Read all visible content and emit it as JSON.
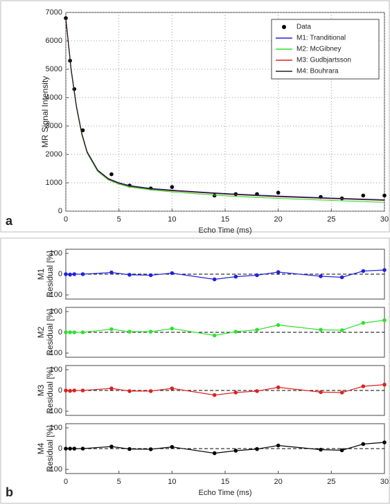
{
  "chart_data": [
    {
      "type": "line",
      "xlabel": "Echo Time (ms)",
      "ylabel": "MR Signal Intensity",
      "panel_label": "a",
      "xlim": [
        0,
        30
      ],
      "xticks": [
        0,
        5,
        10,
        15,
        20,
        25,
        30
      ],
      "ylim": [
        0,
        7000
      ],
      "yticks": [
        0,
        1000,
        2000,
        3000,
        4000,
        5000,
        6000,
        7000
      ],
      "grid": true,
      "legend": "upper right",
      "series": [
        {
          "name": "Data",
          "color": "#000000",
          "marker": true,
          "line": false,
          "x": [
            0,
            0.4,
            0.8,
            1.6,
            4.3,
            6,
            8,
            10,
            14,
            16,
            18,
            20,
            24,
            26,
            28,
            30
          ],
          "values": [
            6800,
            5300,
            4300,
            2850,
            1300,
            900,
            800,
            850,
            550,
            600,
            600,
            650,
            500,
            450,
            550,
            550
          ]
        },
        {
          "name": "M1: Tranditional",
          "color": "#2020e0",
          "x": [
            0,
            0.5,
            1,
            1.5,
            2,
            3,
            4,
            5,
            6,
            8,
            10,
            12,
            15,
            20,
            25,
            30
          ],
          "values": [
            6800,
            5000,
            3700,
            2750,
            2100,
            1450,
            1150,
            1000,
            900,
            800,
            740,
            690,
            620,
            530,
            460,
            400
          ]
        },
        {
          "name": "M2: McGibney",
          "color": "#30e030",
          "x": [
            0,
            0.5,
            1,
            1.5,
            2,
            3,
            4,
            5,
            6,
            8,
            10,
            12,
            15,
            20,
            25,
            30
          ],
          "values": [
            6800,
            4950,
            3650,
            2700,
            2050,
            1400,
            1100,
            950,
            850,
            750,
            680,
            620,
            540,
            450,
            380,
            310
          ]
        },
        {
          "name": "M3: Gudbjartsson",
          "color": "#e02020",
          "x": [
            0,
            0.5,
            1,
            1.5,
            2,
            3,
            4,
            5,
            6,
            8,
            10,
            12,
            15,
            20,
            25,
            30
          ],
          "values": [
            6800,
            4980,
            3680,
            2730,
            2080,
            1430,
            1130,
            980,
            880,
            780,
            720,
            670,
            600,
            510,
            440,
            380
          ]
        },
        {
          "name": "M4: Bouhrara",
          "color": "#202020",
          "x": [
            0,
            0.5,
            1,
            1.5,
            2,
            3,
            4,
            5,
            6,
            8,
            10,
            12,
            15,
            20,
            25,
            30
          ],
          "values": [
            6800,
            4990,
            3690,
            2740,
            2090,
            1440,
            1140,
            990,
            890,
            790,
            730,
            680,
            610,
            520,
            450,
            390
          ]
        }
      ]
    },
    {
      "type": "line",
      "model": "M1",
      "ylabel": "Residual [%]",
      "xlim": [
        0,
        30
      ],
      "ylim": [
        -120,
        120
      ],
      "yticks": [
        -100,
        0,
        100
      ],
      "refline": 0,
      "x": [
        0,
        0.4,
        0.8,
        1.6,
        4.3,
        6,
        8,
        10,
        14,
        16,
        18,
        20,
        24,
        26,
        28,
        30
      ],
      "series": [
        {
          "color": "#2020e0",
          "marker": true,
          "values": [
            0,
            -2,
            0,
            0,
            8,
            -3,
            -5,
            5,
            -25,
            -12,
            -5,
            10,
            -10,
            -15,
            15,
            20
          ]
        }
      ]
    },
    {
      "type": "line",
      "model": "M2",
      "ylabel": "Residual [%]",
      "xlim": [
        0,
        30
      ],
      "ylim": [
        -120,
        120
      ],
      "yticks": [
        -100,
        0,
        100
      ],
      "refline": 0,
      "x": [
        0,
        0.4,
        0.8,
        1.6,
        4.3,
        6,
        8,
        10,
        14,
        16,
        18,
        20,
        24,
        26,
        28,
        30
      ],
      "series": [
        {
          "color": "#30e030",
          "marker": true,
          "values": [
            0,
            0,
            0,
            0,
            15,
            3,
            3,
            18,
            -15,
            3,
            12,
            35,
            12,
            10,
            45,
            58
          ]
        }
      ]
    },
    {
      "type": "line",
      "model": "M3",
      "ylabel": "Residual [%]",
      "xlim": [
        0,
        30
      ],
      "ylim": [
        -120,
        120
      ],
      "yticks": [
        -100,
        0,
        100
      ],
      "refline": 0,
      "x": [
        0,
        0.4,
        0.8,
        1.6,
        4.3,
        6,
        8,
        10,
        14,
        16,
        18,
        20,
        24,
        26,
        28,
        30
      ],
      "series": [
        {
          "color": "#e02020",
          "marker": true,
          "values": [
            0,
            -2,
            0,
            0,
            10,
            -3,
            -3,
            10,
            -22,
            -10,
            -3,
            15,
            -8,
            -10,
            20,
            28
          ]
        }
      ]
    },
    {
      "type": "line",
      "model": "M4",
      "ylabel": "Residual [%]",
      "xlabel": "Echo Time (ms)",
      "panel_label": "b",
      "xlim": [
        0,
        30
      ],
      "xticks": [
        0,
        5,
        10,
        15,
        20,
        25,
        30
      ],
      "ylim": [
        -120,
        120
      ],
      "yticks": [
        -100,
        0,
        100
      ],
      "refline": 0,
      "x": [
        0,
        0.4,
        0.8,
        1.6,
        4.3,
        6,
        8,
        10,
        14,
        16,
        18,
        20,
        24,
        26,
        28,
        30
      ],
      "series": [
        {
          "color": "#000000",
          "marker": true,
          "values": [
            0,
            0,
            0,
            0,
            10,
            -2,
            -3,
            8,
            -22,
            -10,
            -2,
            15,
            -5,
            -8,
            22,
            30
          ]
        }
      ]
    }
  ]
}
